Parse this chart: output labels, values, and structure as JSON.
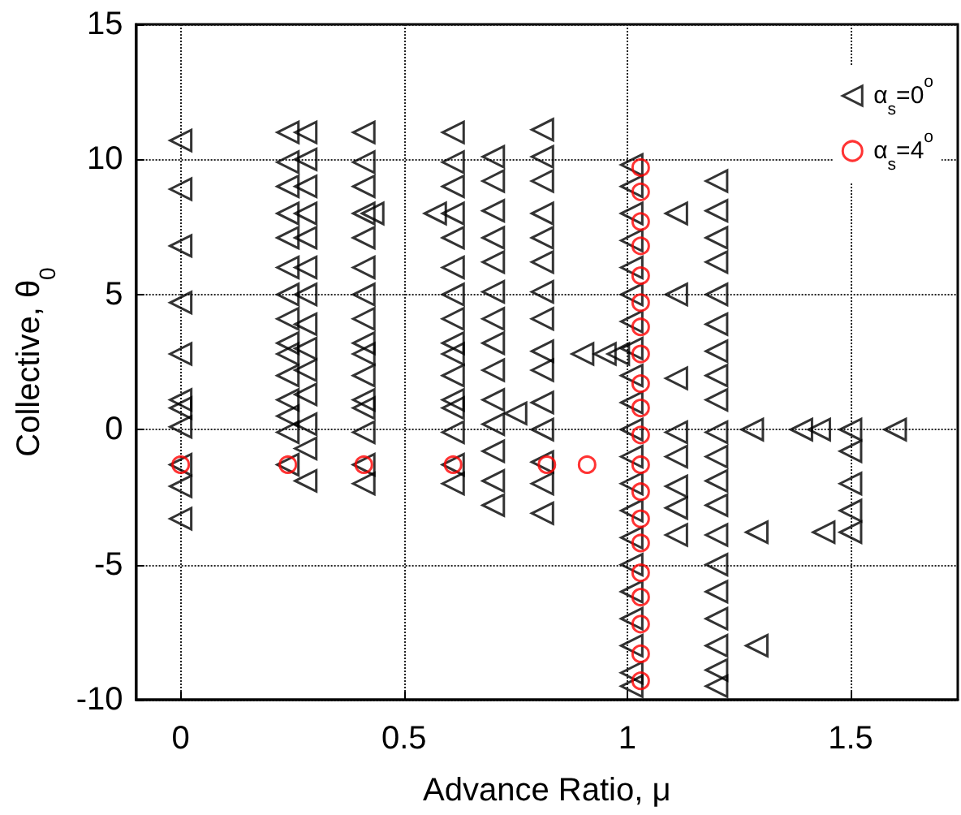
{
  "chart_data": {
    "type": "scatter",
    "xlabel": "Advance Ratio, μ",
    "ylabel": "Collective, θ$_{0}$",
    "xlim": [
      -0.1,
      1.74
    ],
    "xticks": [
      0,
      0.5,
      1,
      1.5
    ],
    "ylim": [
      -10,
      15
    ],
    "yticks": [
      -10,
      -5,
      0,
      5,
      10,
      15
    ],
    "grid": true,
    "legend": "top right",
    "series": [
      {
        "name": "α$_{s}$=0$^{o}$",
        "color": "#000000",
        "marker": "triangle",
        "x": [
          0,
          0,
          0,
          0,
          0,
          0,
          0,
          0,
          0,
          0,
          0,
          0.24,
          0.24,
          0.24,
          0.24,
          0.24,
          0.24,
          0.24,
          0.24,
          0.24,
          0.24,
          0.24,
          0.24,
          0.24,
          0.24,
          0.24,
          0.28,
          0.28,
          0.28,
          0.28,
          0.28,
          0.28,
          0.28,
          0.28,
          0.28,
          0.28,
          0.28,
          0.28,
          0.28,
          0.28,
          0.41,
          0.41,
          0.41,
          0.41,
          0.41,
          0.41,
          0.41,
          0.41,
          0.41,
          0.41,
          0.41,
          0.41,
          0.41,
          0.41,
          0.41,
          0.41,
          0.43,
          0.61,
          0.61,
          0.61,
          0.61,
          0.61,
          0.61,
          0.61,
          0.61,
          0.61,
          0.61,
          0.61,
          0.61,
          0.61,
          0.61,
          0.61,
          0.61,
          0.57,
          0.7,
          0.7,
          0.7,
          0.7,
          0.7,
          0.7,
          0.7,
          0.7,
          0.7,
          0.7,
          0.7,
          0.7,
          0.7,
          0.7,
          0.75,
          0.81,
          0.81,
          0.81,
          0.81,
          0.81,
          0.81,
          0.81,
          0.81,
          0.81,
          0.81,
          0.81,
          0.81,
          0.81,
          0.81,
          0.81,
          0.9,
          0.95,
          0.98,
          1.01,
          1.01,
          1.01,
          1.01,
          1.01,
          1.01,
          1.01,
          1.01,
          1.01,
          1.01,
          1.01,
          1.01,
          1.01,
          1.01,
          1.01,
          1.01,
          1.01,
          1.01,
          1.01,
          1.01,
          1.01,
          1.11,
          1.11,
          1.11,
          1.11,
          1.11,
          1.11,
          1.11,
          1.11,
          1.2,
          1.2,
          1.2,
          1.2,
          1.2,
          1.2,
          1.2,
          1.2,
          1.2,
          1.2,
          1.2,
          1.2,
          1.2,
          1.2,
          1.2,
          1.2,
          1.2,
          1.2,
          1.2,
          1.2,
          1.28,
          1.39,
          1.43,
          1.5,
          1.6,
          1.5,
          1.5,
          1.5,
          1.5,
          1.44,
          1.29,
          1.29
        ],
        "values": [
          10.7,
          8.9,
          6.8,
          4.7,
          2.8,
          1.1,
          0.8,
          0.1,
          -1.3,
          -2.1,
          -3.3,
          11,
          9.9,
          9,
          8,
          7.1,
          6,
          5,
          4.1,
          3.2,
          2.8,
          2,
          1.1,
          0.5,
          -0.1,
          -1.3,
          11,
          10,
          9,
          8,
          7.1,
          6,
          5,
          3.9,
          3,
          2.2,
          1.3,
          0.2,
          -0.7,
          -1.9,
          11,
          9.9,
          9,
          8,
          7.1,
          6,
          5,
          4.1,
          3.2,
          2.8,
          2,
          1.1,
          0.8,
          -0.1,
          -1.3,
          -2,
          8,
          11,
          9.9,
          9,
          8,
          7.1,
          6,
          5,
          4.1,
          3.2,
          2.8,
          2,
          1.1,
          0.8,
          -0.1,
          -1.3,
          -2,
          8,
          10.1,
          9.2,
          8.1,
          7.1,
          6.2,
          5.1,
          4.1,
          3.2,
          2.2,
          1.1,
          0.2,
          -0.8,
          -1.9,
          -2.8,
          0.6,
          11.1,
          10.1,
          9.2,
          8,
          7.1,
          6.2,
          5.1,
          4.1,
          2.9,
          2.2,
          1,
          0,
          -1.2,
          -2,
          -3.1,
          2.8,
          2.8,
          2.8,
          9.8,
          9,
          8,
          7,
          6,
          5,
          4,
          3,
          2,
          1,
          0,
          -1,
          -2,
          -3,
          -4,
          -5,
          -6,
          -7,
          -8,
          -9,
          -9.5,
          8,
          5,
          1.9,
          -0.1,
          -1,
          -2.1,
          -2.9,
          -3.9,
          9.2,
          8.1,
          7.1,
          6.2,
          5,
          3.9,
          2.9,
          2,
          1.1,
          -0.1,
          -1,
          -1.9,
          -2.8,
          -3.9,
          -5,
          -6,
          -7,
          -8,
          -8.9,
          -9.5,
          0,
          0,
          0,
          0,
          0,
          -0.8,
          -2,
          -3,
          -3.8,
          -3.8,
          -3.8,
          -8
        ]
      },
      {
        "name": "α$_{s}$=4$^{o}$",
        "color": "#ff0000",
        "marker": "circle",
        "x": [
          0,
          0.24,
          0.41,
          0.61,
          0.82,
          0.91,
          1.03,
          1.03,
          1.03,
          1.03,
          1.03,
          1.03,
          1.03,
          1.03,
          1.03,
          1.03,
          1.03,
          1.03,
          1.03,
          1.03,
          1.03,
          1.03,
          1.03,
          1.03,
          1.03,
          1.03
        ],
        "values": [
          -1.3,
          -1.3,
          -1.3,
          -1.3,
          -1.3,
          -1.3,
          9.7,
          8.8,
          7.7,
          6.8,
          5.7,
          4.7,
          3.8,
          2.8,
          1.7,
          0.8,
          -0.2,
          -1.3,
          -2.3,
          -3.3,
          -4.2,
          -5.3,
          -6.2,
          -7.2,
          -8.3,
          -9.3
        ]
      }
    ]
  }
}
